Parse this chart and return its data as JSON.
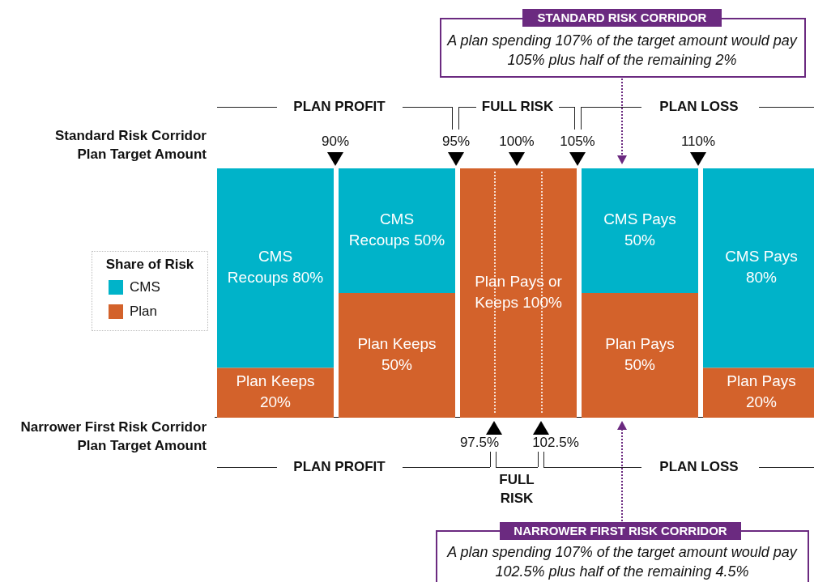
{
  "chart_data": {
    "type": "bar",
    "stacked": true,
    "categories": [
      null,
      null,
      null,
      null,
      null
    ],
    "ylim": [
      0,
      100
    ],
    "tick_labels": false,
    "legend": "left",
    "legend_title": "Share of Risk",
    "series": [
      {
        "name": "Plan",
        "color": "#d3622b",
        "values": [
          20,
          50,
          100,
          50,
          20
        ],
        "value_labels": [
          "Plan Keeps 20%",
          "Plan Keeps 50%",
          "Plan Pays or Keeps 100%",
          "Plan Pays 50%",
          "Plan Pays 20%"
        ]
      },
      {
        "name": "CMS",
        "color": "#00b3c9",
        "values": [
          80,
          50,
          0,
          50,
          80
        ],
        "value_labels": [
          "CMS Recoups 80%",
          "CMS Recoups 50%",
          null,
          "CMS Pays 50%",
          "CMS Pays 80%"
        ]
      }
    ],
    "annotations": [
      "Standard Risk Corridor Plan Target Amount",
      "90%",
      "95%",
      "100%",
      "105%",
      "110%",
      "PLAN PROFIT",
      "FULL RISK",
      "PLAN LOSS",
      "Narrower First Risk Corridor Plan Target Amount",
      "97.5%",
      "102.5%",
      "PLAN PROFIT",
      "FULL RISK",
      "PLAN LOSS",
      "STANDARD RISK CORRIDOR",
      "A plan spending 107% of the target amount would pay 105% plus half of the remaining 2%",
      "NARROWER FIRST RISK CORRIDOR",
      "A plan spending 107% of the target amount would pay 102.5% plus half of the remaining 4.5%"
    ]
  }
}
